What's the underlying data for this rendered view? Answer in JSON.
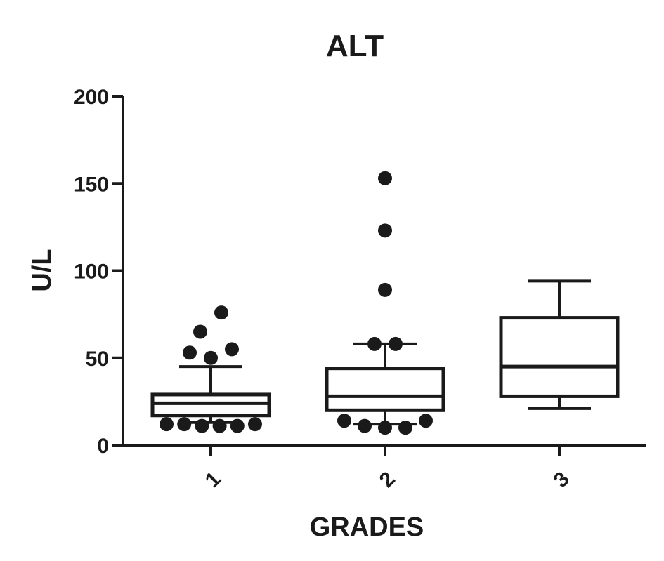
{
  "chart_data": {
    "type": "box",
    "title": "ALT",
    "xlabel": "GRADES",
    "ylabel": "U/L",
    "ylim": [
      0,
      200
    ],
    "yticks": [
      0,
      50,
      100,
      150,
      200
    ],
    "categories": [
      "1",
      "2",
      "3"
    ],
    "grid": false,
    "boxes": [
      {
        "category": "1",
        "q1": 17,
        "median": 24,
        "q3": 29,
        "whisker_low": 13,
        "whisker_high": 45,
        "outliers_high": [
          76,
          65,
          55,
          53,
          50
        ],
        "outliers_low": [
          12,
          12,
          11,
          11,
          11,
          12
        ]
      },
      {
        "category": "2",
        "q1": 20,
        "median": 28,
        "q3": 44,
        "whisker_low": 12,
        "whisker_high": 58,
        "outliers_high": [
          153,
          123,
          89,
          58,
          58
        ],
        "outliers_low": [
          14,
          11,
          10,
          10,
          14
        ]
      },
      {
        "category": "3",
        "q1": 28,
        "median": 45,
        "q3": 73,
        "whisker_low": 21,
        "whisker_high": 94,
        "outliers_high": [],
        "outliers_low": []
      }
    ]
  }
}
